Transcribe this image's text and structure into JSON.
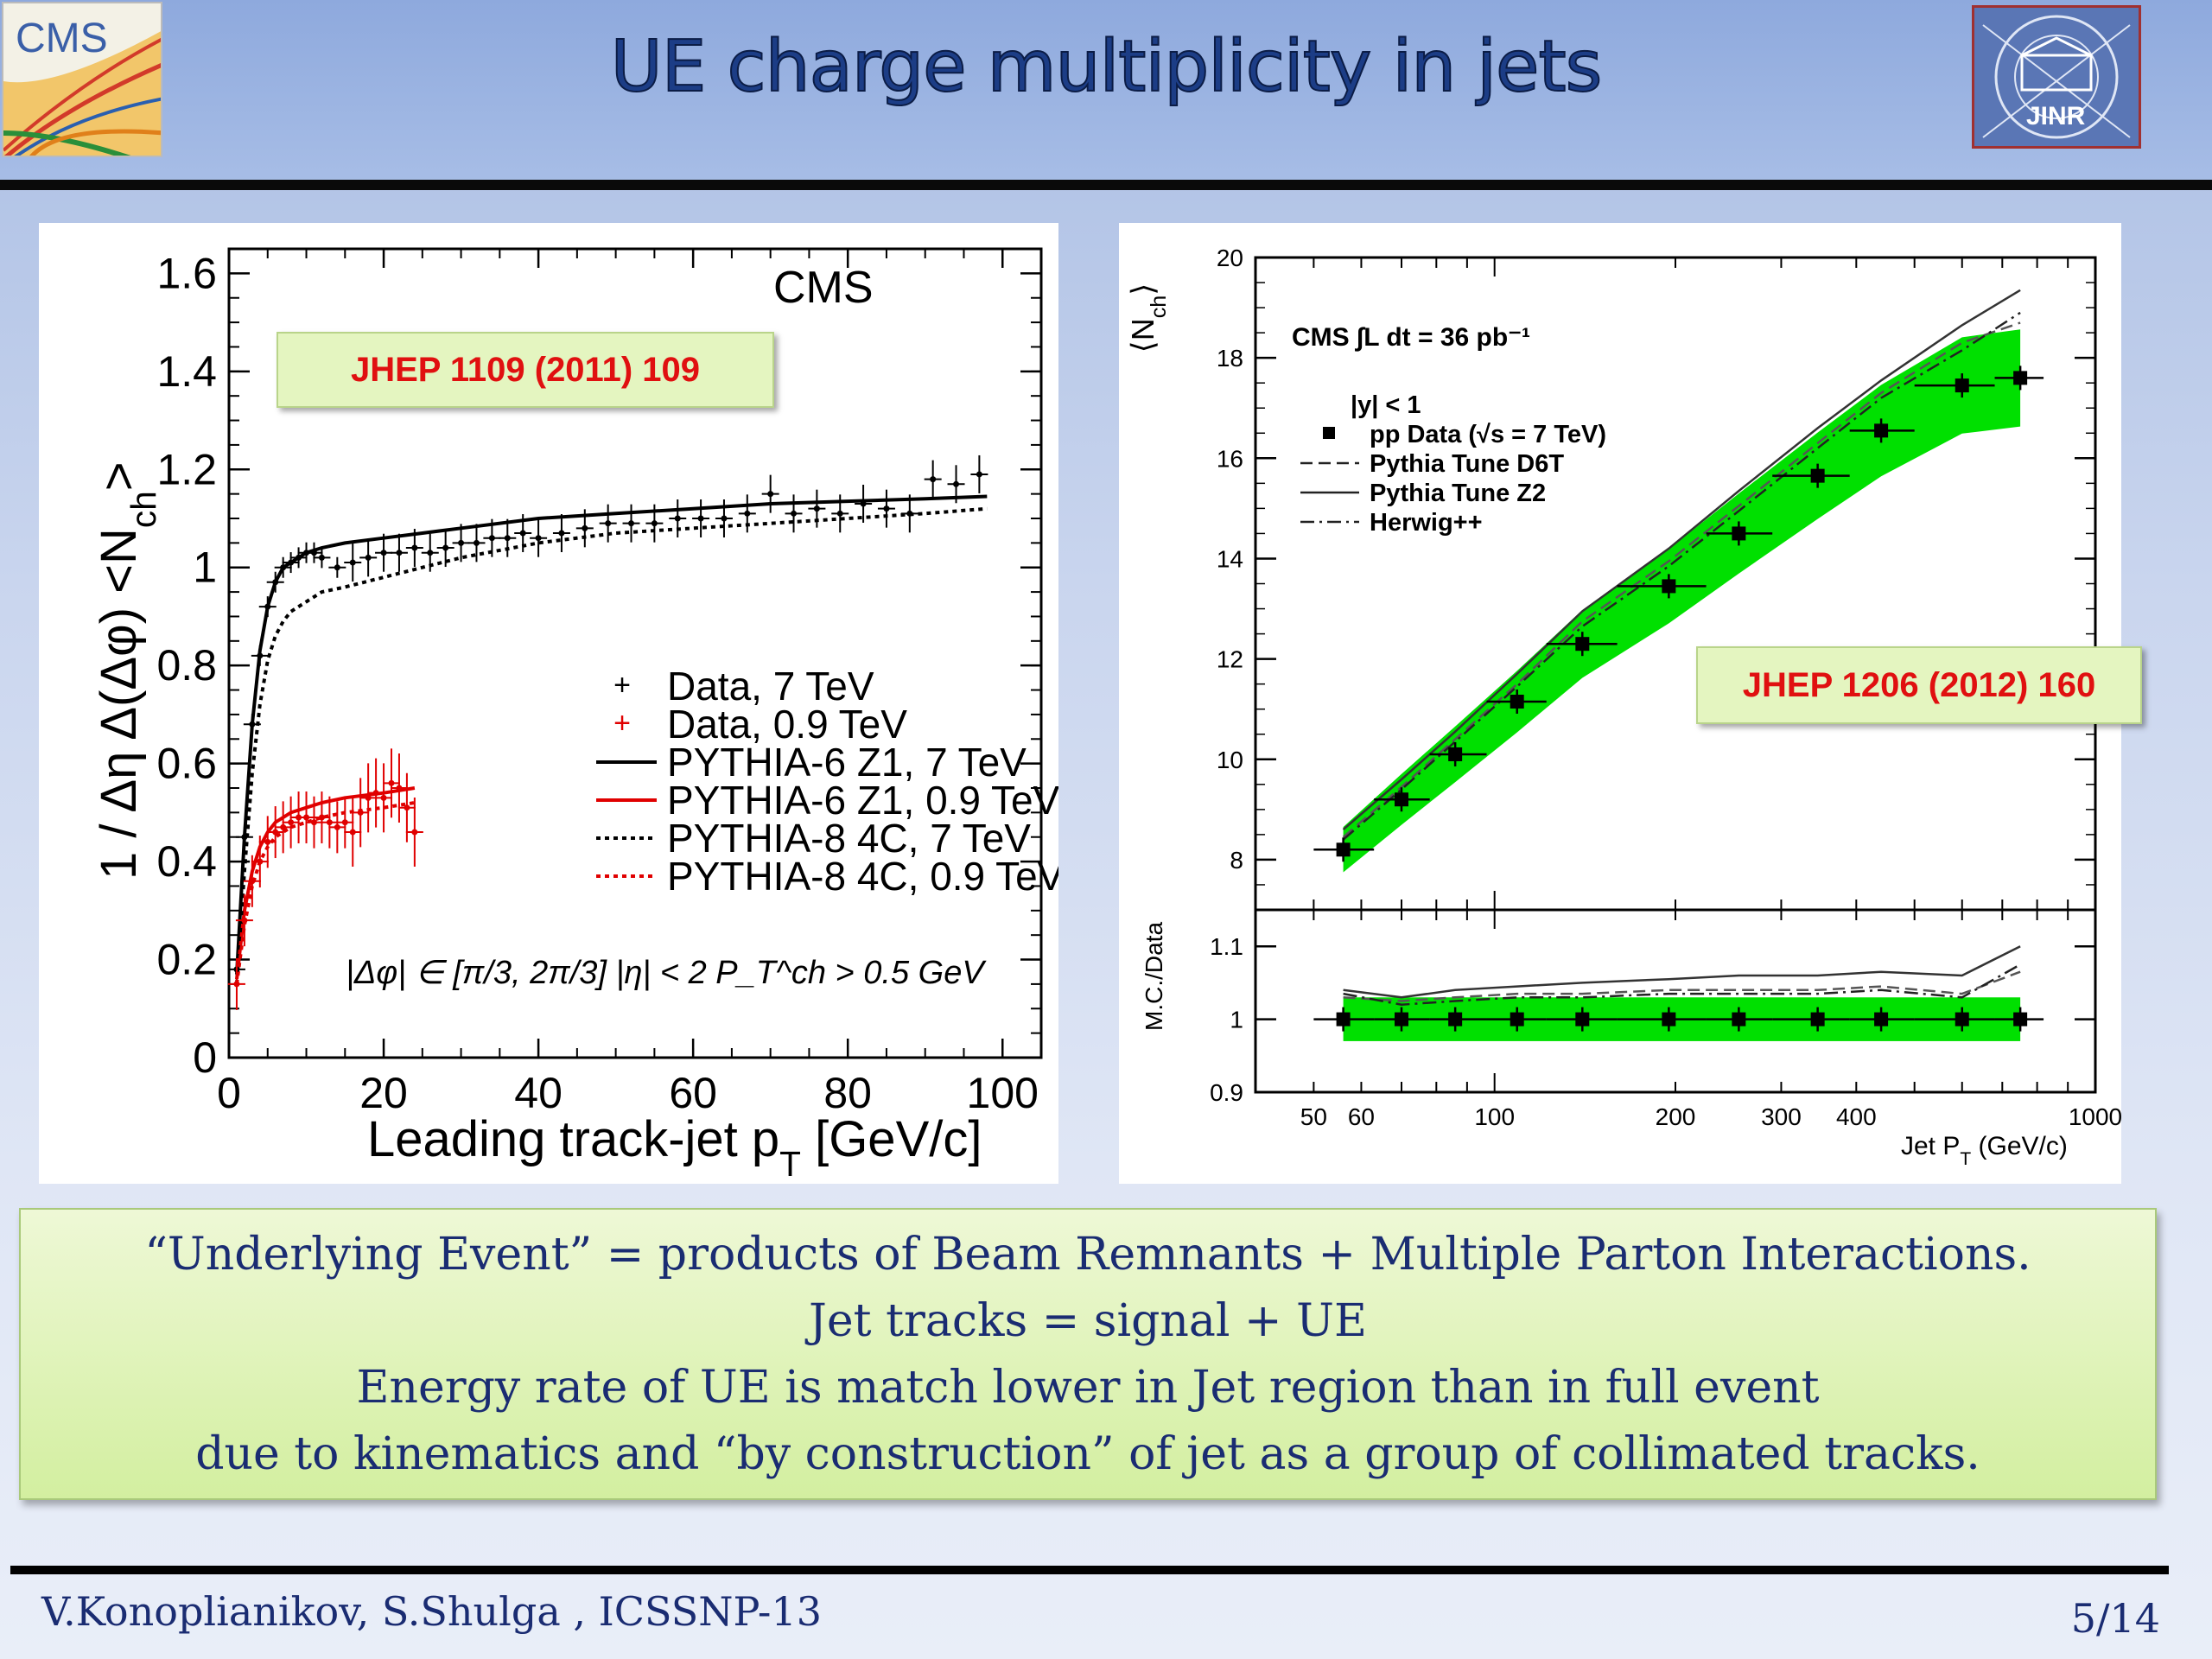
{
  "slide": {
    "title": "UE charge multiplicity in jets",
    "logos": {
      "left_text": "CMS",
      "right_text": "JINR"
    },
    "refs": {
      "left": "JHEP 1109 (2011) 109",
      "right": "JHEP 1206 (2012) 160"
    },
    "text_lines": [
      "“Underlying Event” = products of Beam Remnants + Multiple Parton Interactions.",
      "Jet tracks = signal  + UE",
      "Energy rate of UE is match lower in Jet region than in full event",
      "due to kinematics and “by construction” of jet as a group of collimated tracks."
    ],
    "footer_left": "V.Konoplianikov, S.Shulga , ICSSNP-13",
    "footer_right": "5/14"
  },
  "chart_data": [
    {
      "type": "line",
      "title": "CMS",
      "xlabel": "Leading track-jet p_T [GeV/c]",
      "ylabel": "1 / Δη Δ(Δφ) <N_ch>",
      "xlim": [
        0,
        105
      ],
      "ylim": [
        0,
        1.65
      ],
      "xticks": [
        "0",
        "20",
        "40",
        "60",
        "80",
        "100"
      ],
      "yticks": [
        "0",
        "0.2",
        "0.4",
        "0.6",
        "0.8",
        "1",
        "1.2",
        "1.4",
        "1.6"
      ],
      "legend_position": "right",
      "legend": [
        "Data, 7 TeV",
        "Data, 0.9 TeV",
        "PYTHIA-6 Z1, 7 TeV",
        "PYTHIA-6 Z1, 0.9 TeV",
        "PYTHIA-8 4C, 7 TeV",
        "PYTHIA-8 4C, 0.9 TeV"
      ],
      "annotation": "|Δφ| ∈ [π/3, 2π/3]   |η| < 2   P_T^ch > 0.5 GeV",
      "series": [
        {
          "name": "Data, 7 TeV",
          "color": "#000000",
          "kind": "points",
          "x": [
            1,
            2,
            3,
            4,
            5,
            6,
            7,
            8,
            9,
            10,
            11,
            12,
            14,
            16,
            18,
            20,
            22,
            24,
            26,
            28,
            30,
            32,
            34,
            36,
            38,
            40,
            43,
            46,
            49,
            52,
            55,
            58,
            61,
            64,
            67,
            70,
            73,
            76,
            79,
            82,
            85,
            88,
            91,
            94,
            97
          ],
          "y": [
            0.18,
            0.45,
            0.68,
            0.82,
            0.92,
            0.97,
            1.0,
            1.01,
            1.02,
            1.03,
            1.03,
            1.02,
            1.0,
            1.01,
            1.02,
            1.03,
            1.03,
            1.04,
            1.03,
            1.04,
            1.05,
            1.05,
            1.06,
            1.06,
            1.07,
            1.06,
            1.07,
            1.08,
            1.09,
            1.09,
            1.09,
            1.1,
            1.1,
            1.1,
            1.11,
            1.15,
            1.11,
            1.12,
            1.11,
            1.13,
            1.12,
            1.11,
            1.18,
            1.17,
            1.19
          ]
        },
        {
          "name": "Data, 0.9 TeV",
          "color": "#e00000",
          "kind": "points",
          "x": [
            1,
            2,
            3,
            4,
            5,
            6,
            7,
            8,
            9,
            10,
            11,
            12,
            13,
            14,
            15,
            16,
            17,
            18,
            19,
            20,
            21,
            22,
            23,
            24
          ],
          "y": [
            0.15,
            0.28,
            0.36,
            0.4,
            0.44,
            0.46,
            0.47,
            0.48,
            0.49,
            0.49,
            0.48,
            0.49,
            0.48,
            0.47,
            0.48,
            0.46,
            0.5,
            0.53,
            0.54,
            0.53,
            0.56,
            0.55,
            0.51,
            0.46
          ]
        },
        {
          "name": "PYTHIA-6 Z1, 7 TeV",
          "color": "#000000",
          "kind": "line",
          "x": [
            1,
            2,
            3,
            4,
            5,
            6,
            7,
            8,
            10,
            12,
            15,
            20,
            30,
            40,
            50,
            60,
            70,
            80,
            90,
            98
          ],
          "y": [
            0.17,
            0.45,
            0.68,
            0.83,
            0.92,
            0.97,
            1.0,
            1.01,
            1.03,
            1.04,
            1.05,
            1.06,
            1.08,
            1.1,
            1.11,
            1.12,
            1.13,
            1.135,
            1.14,
            1.145
          ]
        },
        {
          "name": "PYTHIA-6 Z1, 0.9 TeV",
          "color": "#e00000",
          "kind": "line",
          "x": [
            1,
            2,
            3,
            4,
            5,
            6,
            8,
            10,
            12,
            15,
            20,
            24
          ],
          "y": [
            0.16,
            0.3,
            0.38,
            0.43,
            0.46,
            0.48,
            0.5,
            0.51,
            0.52,
            0.53,
            0.54,
            0.55
          ]
        },
        {
          "name": "PYTHIA-8 4C, 7 TeV",
          "color": "#000000",
          "kind": "dotted",
          "x": [
            1,
            2,
            3,
            4,
            5,
            6,
            7,
            8,
            10,
            12,
            15,
            20,
            30,
            40,
            50,
            60,
            70,
            80,
            90,
            98
          ],
          "y": [
            0.15,
            0.38,
            0.58,
            0.72,
            0.81,
            0.86,
            0.89,
            0.91,
            0.93,
            0.95,
            0.96,
            0.98,
            1.02,
            1.05,
            1.07,
            1.08,
            1.09,
            1.1,
            1.11,
            1.12
          ]
        },
        {
          "name": "PYTHIA-8 4C, 0.9 TeV",
          "color": "#e00000",
          "kind": "dotted",
          "x": [
            1,
            2,
            3,
            4,
            5,
            6,
            8,
            10,
            12,
            15,
            20,
            24
          ],
          "y": [
            0.15,
            0.27,
            0.35,
            0.4,
            0.43,
            0.45,
            0.47,
            0.48,
            0.49,
            0.5,
            0.51,
            0.52
          ]
        }
      ]
    },
    {
      "type": "line",
      "title": "CMS ∫L dt = 36 pb⁻¹",
      "xlabel": "Jet P_T (GeV/c)",
      "ylabel": "⟨N_ch⟩",
      "ratio_ylabel": "M.C./Data",
      "x_scale": "log",
      "xlim": [
        40,
        1000
      ],
      "ylim": [
        7,
        20
      ],
      "ratio_ylim": [
        0.9,
        1.15
      ],
      "xticks": [
        "50",
        "60",
        "100",
        "200",
        "300",
        "400",
        "1000"
      ],
      "yticks": [
        "8",
        "10",
        "12",
        "14",
        "16",
        "18",
        "20"
      ],
      "ratio_yticks": [
        "0.9",
        "1",
        "1.1"
      ],
      "legend_position": "top-left",
      "legend": [
        "|y| < 1",
        "pp Data (√s = 7 TeV)",
        "Pythia Tune D6T",
        "Pythia Tune Z2",
        "Herwig++"
      ],
      "band_color": "#00e000",
      "series": [
        {
          "name": "pp Data (√s = 7 TeV)",
          "kind": "points",
          "x": [
            56,
            70,
            86,
            109,
            140,
            195,
            255,
            345,
            440,
            600,
            750
          ],
          "y": [
            8.2,
            9.2,
            10.1,
            11.15,
            12.3,
            13.45,
            14.5,
            15.65,
            16.55,
            17.45,
            17.6
          ],
          "ratio": [
            1,
            1,
            1,
            1,
            1,
            1,
            1,
            1,
            1,
            1,
            1
          ]
        },
        {
          "name": "Pythia Tune D6T",
          "kind": "dashed",
          "x": [
            56,
            70,
            86,
            109,
            140,
            195,
            255,
            345,
            440,
            600,
            750
          ],
          "y": [
            8.45,
            9.45,
            10.4,
            11.5,
            12.75,
            13.95,
            15.05,
            16.3,
            17.3,
            18.3,
            18.7
          ],
          "ratio": [
            1.03,
            1.025,
            1.03,
            1.035,
            1.035,
            1.04,
            1.04,
            1.04,
            1.045,
            1.035,
            1.065
          ]
        },
        {
          "name": "Pythia Tune Z2",
          "kind": "solid",
          "x": [
            56,
            70,
            86,
            109,
            140,
            195,
            255,
            345,
            440,
            600,
            750
          ],
          "y": [
            8.6,
            9.6,
            10.55,
            11.7,
            12.95,
            14.2,
            15.35,
            16.6,
            17.55,
            18.65,
            19.35
          ],
          "ratio": [
            1.04,
            1.03,
            1.04,
            1.045,
            1.05,
            1.055,
            1.06,
            1.06,
            1.065,
            1.06,
            1.1
          ]
        },
        {
          "name": "Herwig++",
          "kind": "dashdot",
          "x": [
            56,
            70,
            86,
            109,
            140,
            195,
            255,
            345,
            440,
            600,
            750
          ],
          "y": [
            8.4,
            9.4,
            10.35,
            11.45,
            12.65,
            13.85,
            14.95,
            16.2,
            17.2,
            18.15,
            18.9
          ],
          "ratio": [
            1.035,
            1.02,
            1.025,
            1.03,
            1.03,
            1.035,
            1.035,
            1.035,
            1.04,
            1.03,
            1.075
          ]
        }
      ]
    }
  ]
}
